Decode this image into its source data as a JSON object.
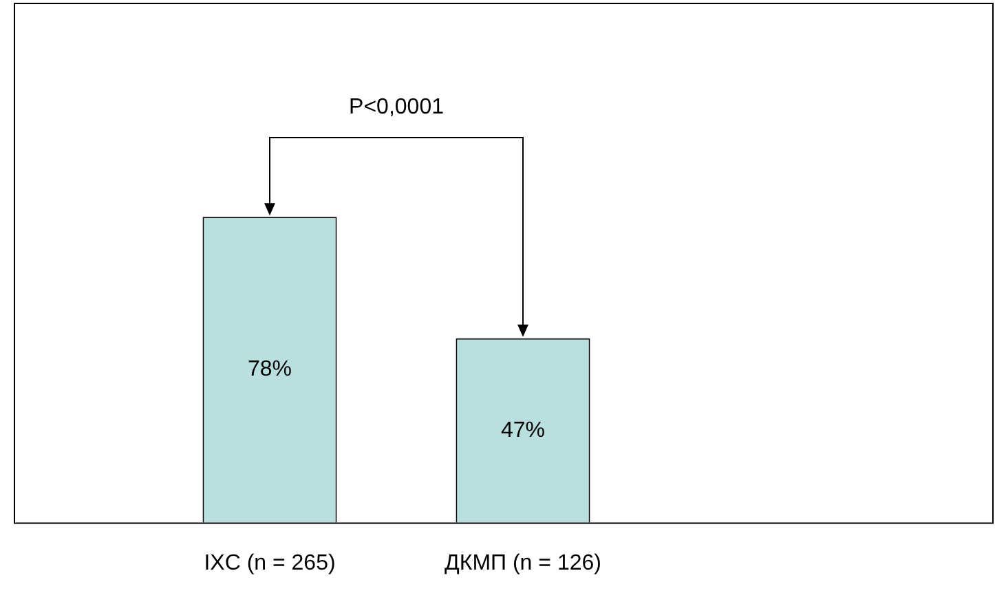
{
  "chart_data": {
    "type": "bar",
    "categories": [
      "IXC (n = 265)",
      "ДКМП (n = 126)"
    ],
    "values": [
      78,
      47
    ],
    "value_labels": [
      "78%",
      "47%"
    ],
    "color": "#b9e0df",
    "annotations": [
      "P<0,0001"
    ],
    "grid": false,
    "legend": false
  }
}
